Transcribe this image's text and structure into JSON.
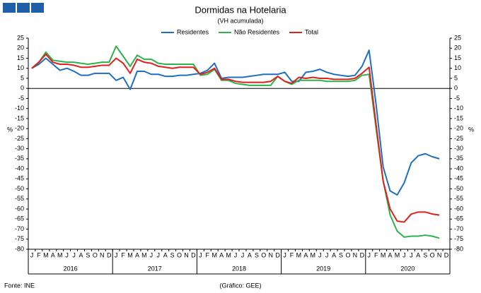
{
  "chart_data": {
    "type": "line",
    "title": "Dormidas na Hotelaria",
    "subtitle": "(VH acumulada)",
    "y_label": "%",
    "y2_label": "%",
    "source": "Fonte: INE",
    "credit": "(Gráfico: GEE)",
    "categories": [
      "J",
      "F",
      "M",
      "A",
      "M",
      "J",
      "J",
      "A",
      "S",
      "O",
      "N",
      "D",
      "J",
      "F",
      "M",
      "A",
      "M",
      "J",
      "J",
      "A",
      "S",
      "O",
      "N",
      "D",
      "J",
      "F",
      "M",
      "A",
      "M",
      "J",
      "J",
      "A",
      "S",
      "O",
      "N",
      "D",
      "J",
      "F",
      "M",
      "A",
      "M",
      "J",
      "J",
      "A",
      "S",
      "O",
      "N",
      "D",
      "J",
      "F",
      "M",
      "A",
      "M",
      "J",
      "J",
      "A",
      "S",
      "O",
      "N",
      "D"
    ],
    "years": [
      "2016",
      "2017",
      "2018",
      "2019",
      "2020"
    ],
    "series": [
      {
        "name": "Residentes",
        "color": "#1f6fbf",
        "values": [
          10,
          12,
          15,
          12,
          9,
          10,
          8.5,
          6.5,
          6.5,
          7.5,
          7.5,
          7.5,
          4,
          5.5,
          -0.5,
          8.5,
          8.5,
          7,
          7,
          6,
          6,
          6.5,
          6.5,
          7,
          7.5,
          9,
          12.5,
          5,
          5.5,
          5.5,
          5.5,
          6,
          6.5,
          7,
          7,
          7,
          8,
          3.5,
          3.5,
          8,
          8.5,
          9.5,
          8,
          7,
          6.5,
          6,
          6.5,
          11,
          19,
          -8,
          -39,
          -51,
          -53,
          -47,
          -37,
          -33.5,
          -32.5,
          -34,
          -35,
          null
        ]
      },
      {
        "name": "Não Residentes",
        "color": "#2db34a",
        "values": [
          10,
          13,
          18,
          14,
          13.5,
          13,
          13,
          12.5,
          12,
          12.5,
          13,
          13,
          21,
          16,
          11,
          16.5,
          14.5,
          14.5,
          12.5,
          12,
          12,
          12,
          12,
          12,
          6.5,
          7,
          9.5,
          4,
          4,
          2.5,
          2,
          1.5,
          1.5,
          1.5,
          1.5,
          6,
          3.5,
          2,
          4,
          4,
          4,
          4,
          3.5,
          3.5,
          3.5,
          3.5,
          4,
          6.5,
          7,
          -20,
          -46,
          -63,
          -71,
          -74,
          -73.5,
          -73.5,
          -73,
          -73.5,
          -74.5,
          null
        ]
      },
      {
        "name": "Total",
        "color": "#e0201b",
        "values": [
          10,
          13,
          17,
          13,
          12,
          12,
          11.5,
          10.5,
          10.5,
          11,
          11.5,
          11.5,
          15,
          12.5,
          7.5,
          14.5,
          13,
          12.5,
          11,
          10.5,
          10,
          10.5,
          10.5,
          10.5,
          7,
          8,
          10,
          4.5,
          4.5,
          3.5,
          3,
          3,
          3,
          3,
          3.5,
          6,
          3.5,
          2.5,
          5.5,
          5,
          5.5,
          5,
          5,
          4.5,
          4.5,
          4.5,
          5,
          7.5,
          10.5,
          -18,
          -46,
          -60,
          -66,
          -66.5,
          -62.5,
          -61.5,
          -61.5,
          -62.5,
          -63,
          null
        ]
      }
    ],
    "ylim": [
      -80,
      25
    ],
    "yticks": [
      25,
      20,
      15,
      10,
      5,
      0,
      -5,
      -10,
      -15,
      -20,
      -25,
      -30,
      -35,
      -40,
      -45,
      -50,
      -55,
      -60,
      -65,
      -70,
      -75,
      -80
    ],
    "y2lim": [
      -80,
      25
    ],
    "y2ticks": [
      25,
      20,
      15,
      10,
      5,
      0,
      -5,
      -10,
      -15,
      -20,
      -25,
      -30,
      -35,
      -40,
      -45,
      -50,
      -55,
      -60,
      -65,
      -70,
      -75,
      -80
    ],
    "grid": false,
    "legend": "top"
  }
}
